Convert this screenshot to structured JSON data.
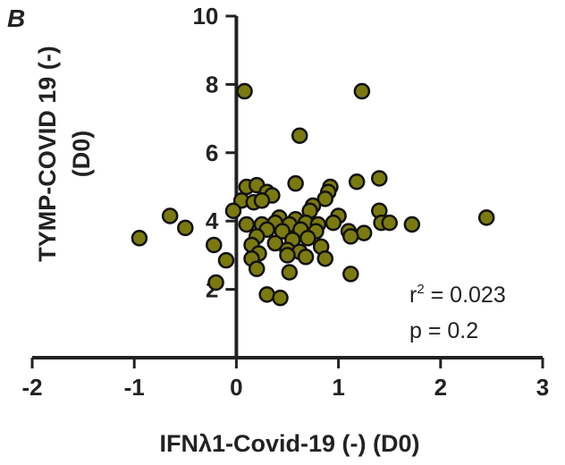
{
  "panel_label": "B",
  "chart_data": {
    "type": "scatter",
    "xlabel": "IFNλ1-Covid-19 (-) (D0)",
    "ylabel_line1": "TYMP-COVID 19 (-)",
    "ylabel_line2": "(D0)",
    "xlim": [
      -2,
      3
    ],
    "ylim": [
      0,
      10
    ],
    "x_ticks": [
      -2,
      -1,
      0,
      1,
      2,
      3
    ],
    "y_ticks": [
      2,
      4,
      6,
      8,
      10
    ],
    "marker_fill": "#7b7a10",
    "marker_stroke": "#111111",
    "annotations": {
      "r2_prefix": "r",
      "r2_sup": "2",
      "r2_value": " = 0.023",
      "p_text": "p = 0.2"
    },
    "points": [
      {
        "x": 0.08,
        "y": 7.8
      },
      {
        "x": 1.23,
        "y": 7.8
      },
      {
        "x": 0.62,
        "y": 6.5
      },
      {
        "x": 1.4,
        "y": 5.25
      },
      {
        "x": 1.18,
        "y": 5.15
      },
      {
        "x": 0.58,
        "y": 5.1
      },
      {
        "x": 0.92,
        "y": 5.0
      },
      {
        "x": 0.1,
        "y": 5.0
      },
      {
        "x": 0.2,
        "y": 5.05
      },
      {
        "x": 0.3,
        "y": 4.85
      },
      {
        "x": 0.35,
        "y": 4.75
      },
      {
        "x": 0.9,
        "y": 4.85
      },
      {
        "x": 0.05,
        "y": 4.6
      },
      {
        "x": 0.17,
        "y": 4.55
      },
      {
        "x": 0.25,
        "y": 4.6
      },
      {
        "x": 0.87,
        "y": 4.65
      },
      {
        "x": 0.75,
        "y": 4.45
      },
      {
        "x": 0.72,
        "y": 4.3
      },
      {
        "x": -0.03,
        "y": 4.3
      },
      {
        "x": 1.4,
        "y": 4.3
      },
      {
        "x": 2.45,
        "y": 4.1
      },
      {
        "x": -0.65,
        "y": 4.15
      },
      {
        "x": 0.42,
        "y": 4.1
      },
      {
        "x": 0.58,
        "y": 4.05
      },
      {
        "x": 1.0,
        "y": 4.15
      },
      {
        "x": 0.1,
        "y": 3.9
      },
      {
        "x": 0.25,
        "y": 3.9
      },
      {
        "x": 0.38,
        "y": 3.95
      },
      {
        "x": 0.52,
        "y": 3.9
      },
      {
        "x": 0.68,
        "y": 3.95
      },
      {
        "x": 0.8,
        "y": 3.9
      },
      {
        "x": 0.95,
        "y": 3.95
      },
      {
        "x": 1.42,
        "y": 3.95
      },
      {
        "x": 1.5,
        "y": 3.95
      },
      {
        "x": 1.72,
        "y": 3.9
      },
      {
        "x": -0.5,
        "y": 3.8
      },
      {
        "x": 0.3,
        "y": 3.75
      },
      {
        "x": 0.45,
        "y": 3.7
      },
      {
        "x": 0.63,
        "y": 3.75
      },
      {
        "x": 0.78,
        "y": 3.7
      },
      {
        "x": 1.1,
        "y": 3.7
      },
      {
        "x": 1.25,
        "y": 3.65
      },
      {
        "x": 0.2,
        "y": 3.55
      },
      {
        "x": 0.55,
        "y": 3.45
      },
      {
        "x": 0.7,
        "y": 3.5
      },
      {
        "x": 1.12,
        "y": 3.55
      },
      {
        "x": -0.95,
        "y": 3.5
      },
      {
        "x": 0.38,
        "y": 3.35
      },
      {
        "x": 0.15,
        "y": 3.3
      },
      {
        "x": 0.83,
        "y": 3.25
      },
      {
        "x": -0.22,
        "y": 3.3
      },
      {
        "x": 0.5,
        "y": 3.15
      },
      {
        "x": 0.62,
        "y": 3.1
      },
      {
        "x": 0.22,
        "y": 3.05
      },
      {
        "x": 0.5,
        "y": 3.0
      },
      {
        "x": 0.68,
        "y": 2.95
      },
      {
        "x": 0.87,
        "y": 2.9
      },
      {
        "x": 0.15,
        "y": 2.9
      },
      {
        "x": -0.1,
        "y": 2.85
      },
      {
        "x": 0.2,
        "y": 2.6
      },
      {
        "x": 0.52,
        "y": 2.5
      },
      {
        "x": 1.12,
        "y": 2.45
      },
      {
        "x": -0.2,
        "y": 2.2
      },
      {
        "x": 0.3,
        "y": 1.85
      },
      {
        "x": 0.43,
        "y": 1.75
      }
    ]
  }
}
